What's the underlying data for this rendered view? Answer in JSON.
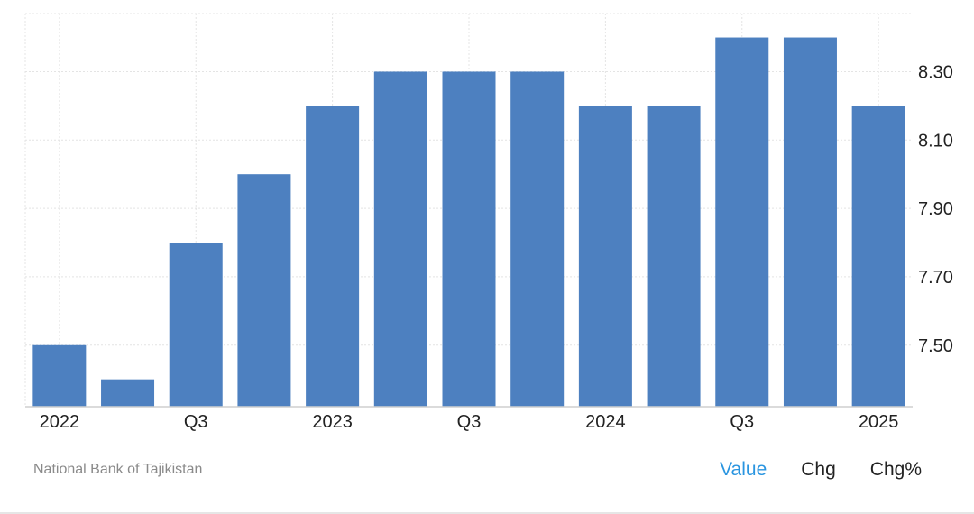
{
  "chart_data": {
    "type": "bar",
    "categories": [
      "2022 Q1",
      "2022 Q2",
      "2022 Q3",
      "2022 Q4",
      "2023 Q1",
      "2023 Q2",
      "2023 Q3",
      "2023 Q4",
      "2024 Q1",
      "2024 Q2",
      "2024 Q3",
      "2024 Q4",
      "2025 Q1"
    ],
    "values": [
      7.5,
      7.4,
      7.8,
      8.0,
      8.2,
      8.3,
      8.3,
      8.3,
      8.2,
      8.2,
      8.4,
      8.4,
      8.2
    ],
    "x_tick_labels": [
      "2022",
      "Q3",
      "2023",
      "Q3",
      "2024",
      "Q3",
      "2025"
    ],
    "x_tick_indices": [
      0,
      2,
      4,
      6,
      8,
      10,
      12
    ],
    "y_ticks": [
      "7.50",
      "7.70",
      "7.90",
      "8.10",
      "8.30"
    ],
    "ylim": [
      7.32,
      8.47
    ],
    "grid": true,
    "y_axis_position": "right",
    "bar_color": "#4d80c0"
  },
  "footer": {
    "source": "National Bank of Tajikistan",
    "tabs": [
      "Value",
      "Chg",
      "Chg%"
    ],
    "active_tab": "Value",
    "active_color": "#2a95e0"
  }
}
